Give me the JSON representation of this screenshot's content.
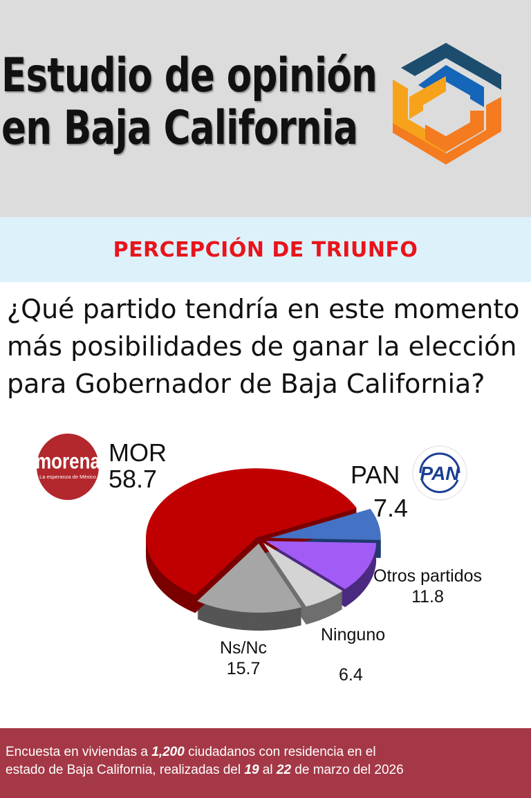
{
  "header": {
    "title_line1": "Estudio de opinión",
    "title_line2": "en Baja California"
  },
  "band": {
    "text": "PERCEPCIÓN DE TRIUNFO"
  },
  "question": "¿Qué partido tendría en este momento más posibilidades de ganar la elección para Gobernador de Baja California?",
  "logos": {
    "morena": "morena",
    "morena_tag": "La esperanza de México",
    "pan": "PAN"
  },
  "chart_data": {
    "type": "pie",
    "categories": [
      "PAN",
      "Otros partidos",
      "Ninguno",
      "Ns/Nc",
      "MOR"
    ],
    "values": [
      7.4,
      11.8,
      6.4,
      15.7,
      58.7
    ],
    "colors": [
      "#4472c4",
      "#a25cf5",
      "#d4d4d4",
      "#a6a6a6",
      "#c00000"
    ],
    "side_colors": [
      "#1f3a6e",
      "#4b2a80",
      "#6e6e6e",
      "#555555",
      "#7a0000"
    ]
  },
  "footer": {
    "t1": "Encuesta en viviendas a ",
    "n1": "1,200",
    "t2": " ciudadanos con residencia en el",
    "t3": "estado de Baja California, realizadas del ",
    "n2": "19",
    "t4": " al ",
    "n3": "22",
    "t5": " de marzo del 2026"
  }
}
